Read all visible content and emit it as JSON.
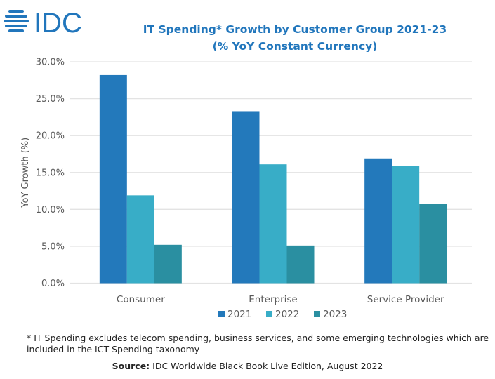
{
  "logo_text": "IDC",
  "colors": {
    "brand": "#2176bc",
    "2021": "#2379bb",
    "2022": "#38adc7",
    "2023": "#2a8fa1",
    "grid": "#e3e3e3"
  },
  "chart_data": {
    "type": "bar",
    "title_line1": "IT Spending* Growth by Customer Group 2021-23",
    "title_line2": "(% YoY Constant Currency)",
    "ylabel": "YoY Growth (%)",
    "xlabel": "",
    "ylim": [
      0,
      30
    ],
    "yticks": [
      "0.0%",
      "5.0%",
      "10.0%",
      "15.0%",
      "20.0%",
      "25.0%",
      "30.0%"
    ],
    "grid": true,
    "legend_position": "bottom",
    "categories": [
      "Consumer",
      "Enterprise",
      "Service Provider"
    ],
    "series": [
      {
        "name": "2021",
        "values": [
          28.2,
          23.3,
          16.9
        ]
      },
      {
        "name": "2022",
        "values": [
          11.9,
          16.1,
          15.9
        ]
      },
      {
        "name": "2023",
        "values": [
          5.2,
          5.1,
          10.7
        ]
      }
    ]
  },
  "footnote": "* IT Spending excludes telecom spending, business services, and some emerging technologies which are included in the ICT Spending taxonomy",
  "source_label": "Source:",
  "source_text": " IDC Worldwide Black Book Live Edition, August 2022"
}
